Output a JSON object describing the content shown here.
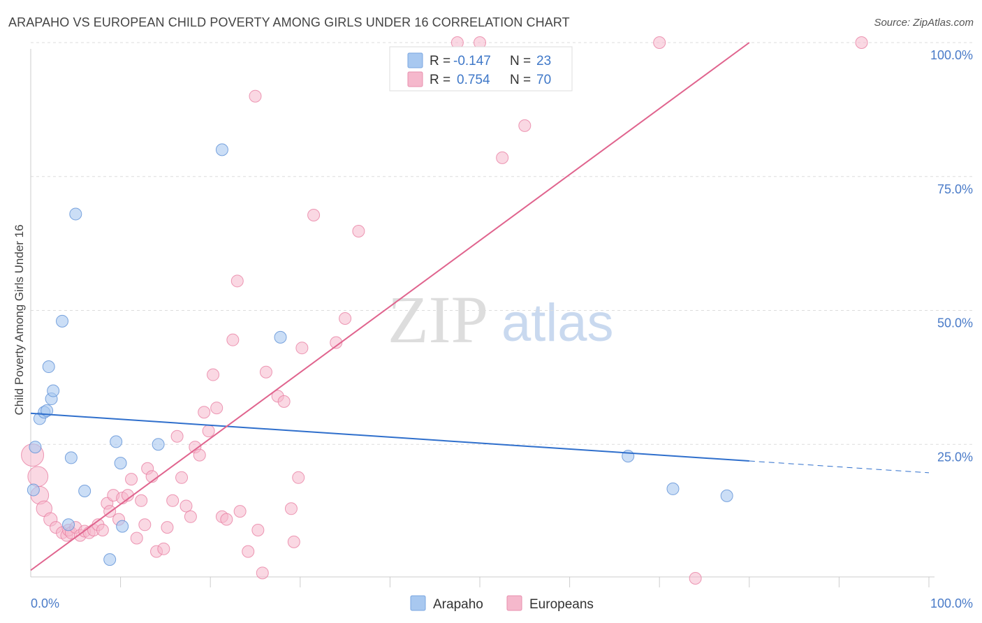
{
  "header": {
    "title": "ARAPAHO VS EUROPEAN CHILD POVERTY AMONG GIRLS UNDER 16 CORRELATION CHART",
    "source": "Source: ZipAtlas.com"
  },
  "watermark": {
    "zip": "ZIP",
    "atlas": "atlas"
  },
  "stats_legend": {
    "rows": [
      {
        "r_label": "R =",
        "r_value": "-0.147",
        "n_label": "N =",
        "n_value": "23",
        "color": "#a8c8f0"
      },
      {
        "r_label": "R =",
        "r_value": "0.754",
        "n_label": "N =",
        "n_value": "70",
        "color": "#f5b8cc"
      }
    ]
  },
  "chart_data": {
    "type": "scatter",
    "title": "ARAPAHO VS EUROPEAN CHILD POVERTY AMONG GIRLS UNDER 16 CORRELATION CHART",
    "xlabel": "",
    "ylabel": "Child Poverty Among Girls Under 16",
    "xlim": [
      0,
      100
    ],
    "ylim": [
      0,
      100
    ],
    "x_tick_labels": [
      "0.0%",
      "100.0%"
    ],
    "y_tick_labels": [
      "25.0%",
      "50.0%",
      "75.0%",
      "100.0%"
    ],
    "y_ticks": [
      25,
      50,
      75,
      100
    ],
    "grid": "horizontal dashed",
    "legend_position": "bottom-center",
    "series": [
      {
        "name": "Arapaho",
        "color": "#5b8fd6",
        "fill": "#a8c8f0",
        "r": -0.147,
        "n": 23,
        "trend": {
          "x0": 0,
          "y0": 30.8,
          "x1": 80,
          "y1": 21.9,
          "dashed_to_x": 100,
          "dashed_to_y": 19.7,
          "color": "#2f6fcc"
        },
        "points": [
          [
            0.3,
            16.5
          ],
          [
            0.5,
            24.5
          ],
          [
            1.0,
            29.8
          ],
          [
            1.5,
            31.0
          ],
          [
            1.8,
            31.3
          ],
          [
            2.0,
            39.5
          ],
          [
            2.3,
            33.5
          ],
          [
            2.5,
            35.0
          ],
          [
            3.5,
            48.0
          ],
          [
            4.5,
            22.5
          ],
          [
            5.0,
            68.0
          ],
          [
            6.0,
            16.3
          ],
          [
            4.2,
            10.0
          ],
          [
            8.8,
            3.5
          ],
          [
            9.5,
            25.5
          ],
          [
            10.0,
            21.5
          ],
          [
            10.2,
            9.7
          ],
          [
            14.2,
            25.0
          ],
          [
            21.3,
            80.0
          ],
          [
            27.8,
            45.0
          ],
          [
            66.5,
            22.8
          ],
          [
            71.5,
            16.7
          ],
          [
            77.5,
            15.4
          ]
        ]
      },
      {
        "name": "Europeans",
        "color": "#e87fa3",
        "fill": "#f5b8cc",
        "r": 0.754,
        "n": 70,
        "trend": {
          "x0": 0,
          "y0": 1.5,
          "x1": 80,
          "y1": 100,
          "color": "#e0648e"
        },
        "points": [
          [
            0.2,
            23.0
          ],
          [
            0.8,
            19.0
          ],
          [
            1.0,
            15.5
          ],
          [
            1.5,
            13.0
          ],
          [
            2.2,
            11.0
          ],
          [
            2.8,
            9.5
          ],
          [
            3.5,
            8.5
          ],
          [
            4.0,
            8.0
          ],
          [
            4.2,
            9.0
          ],
          [
            4.5,
            8.5
          ],
          [
            5.0,
            9.5
          ],
          [
            5.5,
            8.0
          ],
          [
            6.0,
            8.8
          ],
          [
            6.5,
            8.5
          ],
          [
            7.0,
            9.0
          ],
          [
            7.5,
            10.0
          ],
          [
            8.0,
            9.0
          ],
          [
            8.5,
            14.0
          ],
          [
            8.8,
            12.5
          ],
          [
            9.2,
            15.5
          ],
          [
            9.8,
            11.0
          ],
          [
            10.2,
            15.0
          ],
          [
            10.8,
            15.5
          ],
          [
            11.2,
            18.5
          ],
          [
            11.8,
            7.5
          ],
          [
            12.3,
            14.5
          ],
          [
            12.7,
            10.0
          ],
          [
            13.0,
            20.5
          ],
          [
            13.5,
            19.0
          ],
          [
            14.0,
            5.0
          ],
          [
            14.8,
            5.5
          ],
          [
            15.2,
            9.5
          ],
          [
            15.8,
            14.5
          ],
          [
            16.3,
            26.5
          ],
          [
            16.8,
            18.8
          ],
          [
            17.3,
            13.5
          ],
          [
            17.8,
            11.5
          ],
          [
            18.3,
            24.5
          ],
          [
            18.8,
            23.0
          ],
          [
            19.3,
            31.0
          ],
          [
            19.8,
            27.5
          ],
          [
            20.3,
            38.0
          ],
          [
            20.7,
            31.8
          ],
          [
            21.3,
            11.5
          ],
          [
            21.8,
            11.0
          ],
          [
            22.5,
            44.5
          ],
          [
            23.0,
            55.5
          ],
          [
            23.3,
            12.5
          ],
          [
            24.2,
            5.0
          ],
          [
            25.0,
            90.0
          ],
          [
            25.3,
            9.0
          ],
          [
            25.8,
            1.0
          ],
          [
            26.2,
            38.5
          ],
          [
            27.5,
            34.0
          ],
          [
            28.2,
            33.0
          ],
          [
            29.0,
            13.0
          ],
          [
            29.3,
            6.8
          ],
          [
            29.8,
            18.8
          ],
          [
            30.2,
            43.0
          ],
          [
            31.5,
            67.8
          ],
          [
            34.0,
            44.0
          ],
          [
            35.0,
            48.5
          ],
          [
            36.5,
            64.8
          ],
          [
            52.5,
            78.5
          ],
          [
            47.5,
            100
          ],
          [
            50.0,
            100
          ],
          [
            55.0,
            84.5
          ],
          [
            70.0,
            100
          ],
          [
            74.0,
            0
          ],
          [
            92.5,
            100
          ]
        ]
      }
    ]
  },
  "bottom_legend": {
    "items": [
      {
        "label": "Arapaho",
        "color": "#a8c8f0"
      },
      {
        "label": "Europeans",
        "color": "#f5b8cc"
      }
    ]
  }
}
